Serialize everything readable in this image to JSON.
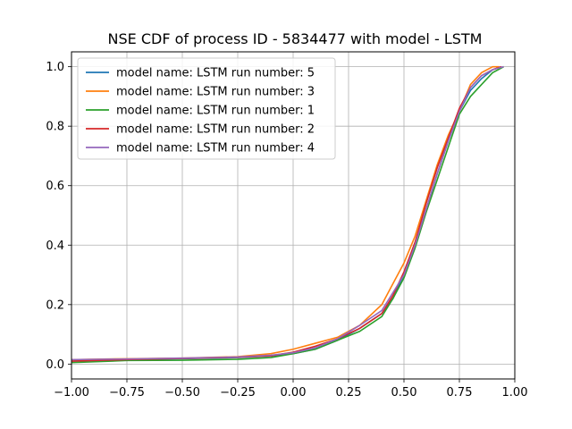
{
  "chart_data": {
    "type": "line",
    "title": "NSE CDF of process ID - 5834477 with model - LSTM",
    "xlabel": "",
    "ylabel": "",
    "xlim": [
      -1.0,
      1.0
    ],
    "ylim": [
      -0.05,
      1.05
    ],
    "xticks": [
      -1.0,
      -0.75,
      -0.5,
      -0.25,
      0.0,
      0.25,
      0.5,
      0.75,
      1.0
    ],
    "xtick_labels": [
      "−1.00",
      "−0.75",
      "−0.50",
      "−0.25",
      "0.00",
      "0.25",
      "0.50",
      "0.75",
      "1.00"
    ],
    "yticks": [
      0.0,
      0.2,
      0.4,
      0.6,
      0.8,
      1.0
    ],
    "ytick_labels": [
      "0.0",
      "0.2",
      "0.4",
      "0.6",
      "0.8",
      "1.0"
    ],
    "grid": true,
    "legend_position": "top-left",
    "series": [
      {
        "name": "model name: LSTM run number: 5",
        "color": "#1f77b4",
        "x": [
          -1.0,
          -0.75,
          -0.5,
          -0.25,
          -0.1,
          0.0,
          0.1,
          0.2,
          0.3,
          0.4,
          0.45,
          0.5,
          0.55,
          0.6,
          0.65,
          0.7,
          0.75,
          0.8,
          0.85,
          0.9,
          0.94
        ],
        "y": [
          0.01,
          0.015,
          0.018,
          0.022,
          0.027,
          0.035,
          0.05,
          0.08,
          0.12,
          0.17,
          0.22,
          0.3,
          0.4,
          0.52,
          0.64,
          0.75,
          0.85,
          0.92,
          0.96,
          0.99,
          1.0
        ]
      },
      {
        "name": "model name: LSTM run number: 3",
        "color": "#ff7f0e",
        "x": [
          -1.0,
          -0.75,
          -0.5,
          -0.25,
          -0.1,
          0.0,
          0.1,
          0.2,
          0.3,
          0.4,
          0.45,
          0.5,
          0.55,
          0.6,
          0.65,
          0.7,
          0.75,
          0.8,
          0.85,
          0.9,
          0.93
        ],
        "y": [
          0.015,
          0.018,
          0.02,
          0.025,
          0.035,
          0.05,
          0.07,
          0.09,
          0.13,
          0.2,
          0.27,
          0.34,
          0.43,
          0.55,
          0.67,
          0.77,
          0.85,
          0.94,
          0.98,
          1.0,
          1.0
        ]
      },
      {
        "name": "model name: LSTM run number: 1",
        "color": "#2ca02c",
        "x": [
          -1.0,
          -0.75,
          -0.5,
          -0.25,
          -0.1,
          0.0,
          0.1,
          0.2,
          0.3,
          0.4,
          0.45,
          0.5,
          0.55,
          0.6,
          0.65,
          0.7,
          0.75,
          0.8,
          0.85,
          0.9,
          0.95
        ],
        "y": [
          0.005,
          0.012,
          0.013,
          0.016,
          0.022,
          0.035,
          0.05,
          0.08,
          0.11,
          0.16,
          0.22,
          0.29,
          0.39,
          0.51,
          0.62,
          0.73,
          0.84,
          0.9,
          0.94,
          0.98,
          1.0
        ]
      },
      {
        "name": "model name: LSTM run number: 2",
        "color": "#d62728",
        "x": [
          -1.0,
          -0.75,
          -0.5,
          -0.25,
          -0.1,
          0.0,
          0.1,
          0.2,
          0.3,
          0.4,
          0.45,
          0.5,
          0.55,
          0.6,
          0.65,
          0.7,
          0.75,
          0.8,
          0.85,
          0.9,
          0.94
        ],
        "y": [
          0.01,
          0.015,
          0.019,
          0.023,
          0.028,
          0.04,
          0.06,
          0.085,
          0.12,
          0.17,
          0.23,
          0.31,
          0.41,
          0.54,
          0.66,
          0.76,
          0.86,
          0.93,
          0.97,
          0.99,
          1.0
        ]
      },
      {
        "name": "model name: LSTM run number: 4",
        "color": "#9467bd",
        "x": [
          -1.0,
          -0.75,
          -0.5,
          -0.25,
          -0.1,
          0.0,
          0.1,
          0.2,
          0.3,
          0.4,
          0.45,
          0.5,
          0.55,
          0.6,
          0.65,
          0.7,
          0.75,
          0.8,
          0.85,
          0.9,
          0.95
        ],
        "y": [
          0.015,
          0.017,
          0.02,
          0.024,
          0.03,
          0.038,
          0.055,
          0.085,
          0.13,
          0.18,
          0.24,
          0.3,
          0.4,
          0.52,
          0.64,
          0.75,
          0.85,
          0.93,
          0.97,
          0.99,
          1.0
        ]
      }
    ]
  }
}
